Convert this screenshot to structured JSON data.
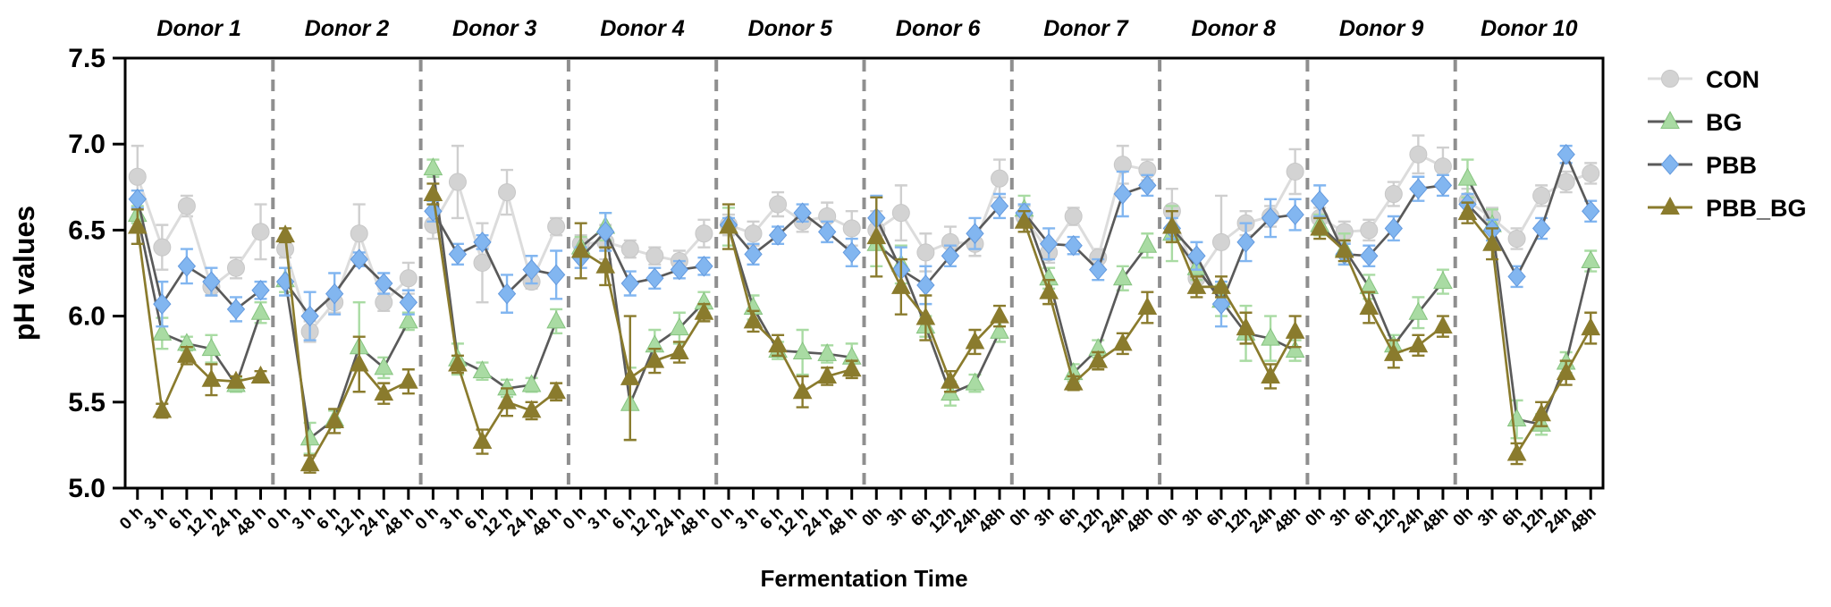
{
  "figure": {
    "background": "#ffffff",
    "y_axis_label": "pH values",
    "x_axis_label": "Fermentation Time"
  },
  "chart_data": {
    "type": "line",
    "title": "",
    "xlabel": "Fermentation Time",
    "ylabel": "pH values",
    "ylim": [
      5.0,
      7.5
    ],
    "y_ticks": [
      "7.5",
      "7.0",
      "6.5",
      "6.0",
      "5.5",
      "5.0"
    ],
    "grid": false,
    "legend_position": "right-outside",
    "series_names": [
      "CON",
      "BG",
      "PBB",
      "PBB_BG"
    ],
    "styles": {
      "CON": {
        "marker": "circle",
        "fill": "#d3d3d3",
        "marker_stroke": "#c7c7c7",
        "line": "#dcdcdc",
        "err": "#cfcfcf"
      },
      "BG": {
        "marker": "triangle",
        "fill": "#a9dba3",
        "marker_stroke": "#85c37f",
        "line": "#5a5a5a",
        "err": "#a9dba3"
      },
      "PBB": {
        "marker": "diamond",
        "fill": "#82b6f0",
        "marker_stroke": "#649ade",
        "line": "#5a5a5a",
        "err": "#82b6f0"
      },
      "PBB_BG": {
        "marker": "triangle",
        "fill": "#8a7b2d",
        "marker_stroke": "#8a7b2d",
        "line": "#8a7b2d",
        "err": "#8a7b2d"
      }
    },
    "separator_color": "#8f8f8f",
    "donors": [
      {
        "name": "Donor 1",
        "tick_labels": [
          "0 h",
          "3 h",
          "6 h",
          "12 h",
          "24 h",
          "48 h"
        ],
        "series": {
          "CON": {
            "values": [
              6.81,
              6.4,
              6.64,
              6.17,
              6.28,
              6.49
            ],
            "err": [
              0.18,
              0.13,
              0.06,
              0.05,
              0.06,
              0.16
            ]
          },
          "BG": {
            "values": [
              6.59,
              5.9,
              5.84,
              5.81,
              5.6,
              6.02
            ],
            "err": [
              0.05,
              0.09,
              0.04,
              0.08,
              0.04,
              0.06
            ]
          },
          "PBB": {
            "values": [
              6.68,
              6.07,
              6.29,
              6.2,
              6.04,
              6.15
            ],
            "err": [
              0.05,
              0.13,
              0.1,
              0.08,
              0.07,
              0.05
            ]
          },
          "PBB_BG": {
            "values": [
              6.52,
              5.45,
              5.77,
              5.63,
              5.62,
              5.65
            ],
            "err": [
              0.1,
              0.04,
              0.05,
              0.09,
              0.03,
              0.03
            ]
          }
        }
      },
      {
        "name": "Donor 2",
        "tick_labels": [
          "0 h",
          "3 h",
          "6 h",
          "12 h",
          "24 h",
          "48 h"
        ],
        "series": {
          "CON": {
            "values": [
              6.39,
              5.91,
              6.08,
              6.48,
              6.08,
              6.22
            ],
            "err": [
              0.05,
              0.06,
              0.06,
              0.17,
              0.05,
              0.09
            ]
          },
          "BG": {
            "values": [
              6.21,
              5.29,
              5.4,
              5.82,
              5.7,
              5.97
            ],
            "err": [
              0.07,
              0.09,
              0.05,
              0.26,
              0.06,
              0.05
            ]
          },
          "PBB": {
            "values": [
              6.2,
              6.0,
              6.13,
              6.33,
              6.19,
              6.08
            ],
            "err": [
              0.08,
              0.14,
              0.12,
              0.04,
              0.06,
              0.07
            ]
          },
          "PBB_BG": {
            "values": [
              6.47,
              5.14,
              5.39,
              5.72,
              5.55,
              5.62
            ],
            "err": [
              0.04,
              0.05,
              0.07,
              0.16,
              0.06,
              0.07
            ]
          }
        }
      },
      {
        "name": "Donor 3",
        "tick_labels": [
          "0 h",
          "3 h",
          "6 h",
          "12 h",
          "24 h",
          "48 h"
        ],
        "series": {
          "CON": {
            "values": [
              6.53,
              6.78,
              6.31,
              6.72,
              6.2,
              6.52
            ],
            "err": [
              0.08,
              0.21,
              0.23,
              0.13,
              0.04,
              0.05
            ]
          },
          "BG": {
            "values": [
              6.86,
              5.75,
              5.68,
              5.58,
              5.6,
              5.97
            ],
            "err": [
              0.05,
              0.09,
              0.05,
              0.05,
              0.04,
              0.07
            ]
          },
          "PBB": {
            "values": [
              6.61,
              6.36,
              6.43,
              6.13,
              6.27,
              6.24
            ],
            "err": [
              0.06,
              0.06,
              0.04,
              0.11,
              0.08,
              0.14
            ]
          },
          "PBB_BG": {
            "values": [
              6.71,
              5.72,
              5.27,
              5.5,
              5.45,
              5.56
            ],
            "err": [
              0.06,
              0.05,
              0.07,
              0.08,
              0.05,
              0.05
            ]
          }
        }
      },
      {
        "name": "Donor 4",
        "tick_labels": [
          "0 h",
          "3 h",
          "6 h",
          "12 h",
          "24 h",
          "48 h"
        ],
        "series": {
          "CON": {
            "values": [
              6.42,
              6.43,
              6.39,
              6.35,
              6.32,
              6.48
            ],
            "err": [
              0.05,
              0.1,
              0.05,
              0.05,
              0.06,
              0.08
            ]
          },
          "BG": {
            "values": [
              6.4,
              6.52,
              5.49,
              5.83,
              5.93,
              6.08
            ],
            "err": [
              0.06,
              0.08,
              0.21,
              0.09,
              0.09,
              0.06
            ]
          },
          "PBB": {
            "values": [
              6.34,
              6.49,
              6.19,
              6.22,
              6.27,
              6.29
            ],
            "err": [
              0.06,
              0.11,
              0.07,
              0.06,
              0.05,
              0.05
            ]
          },
          "PBB_BG": {
            "values": [
              6.38,
              6.29,
              5.64,
              5.74,
              5.79,
              6.02
            ],
            "err": [
              0.16,
              0.11,
              0.36,
              0.07,
              0.06,
              0.05
            ]
          }
        }
      },
      {
        "name": "Donor 5",
        "tick_labels": [
          "0 h",
          "3 h",
          "6 h",
          "12 h",
          "24 h",
          "48 h"
        ],
        "series": {
          "CON": {
            "values": [
              6.53,
              6.48,
              6.65,
              6.55,
              6.58,
              6.51
            ],
            "err": [
              0.06,
              0.07,
              0.07,
              0.06,
              0.08,
              0.1
            ]
          },
          "BG": {
            "values": [
              6.52,
              6.05,
              5.8,
              5.79,
              5.78,
              5.76
            ],
            "err": [
              0.11,
              0.07,
              0.05,
              0.13,
              0.05,
              0.08
            ]
          },
          "PBB": {
            "values": [
              6.53,
              6.36,
              6.47,
              6.6,
              6.49,
              6.37
            ],
            "err": [
              0.04,
              0.06,
              0.05,
              0.05,
              0.06,
              0.08
            ]
          },
          "PBB_BG": {
            "values": [
              6.52,
              5.97,
              5.83,
              5.56,
              5.65,
              5.69
            ],
            "err": [
              0.13,
              0.06,
              0.06,
              0.09,
              0.05,
              0.05
            ]
          }
        }
      },
      {
        "name": "Donor 6",
        "tick_labels": [
          "0h",
          "3h",
          "6h",
          "12h",
          "24h",
          "48h"
        ],
        "series": {
          "CON": {
            "values": [
              6.5,
              6.6,
              6.37,
              6.43,
              6.42,
              6.8
            ],
            "err": [
              0.11,
              0.16,
              0.11,
              0.09,
              0.07,
              0.11
            ]
          },
          "BG": {
            "values": [
              6.42,
              6.3,
              5.94,
              5.55,
              5.61,
              5.91
            ],
            "err": [
              0.13,
              0.11,
              0.06,
              0.07,
              0.05,
              0.06
            ]
          },
          "PBB": {
            "values": [
              6.57,
              6.27,
              6.18,
              6.35,
              6.48,
              6.64
            ],
            "err": [
              0.13,
              0.13,
              0.11,
              0.06,
              0.09,
              0.07
            ]
          },
          "PBB_BG": {
            "values": [
              6.46,
              6.17,
              5.99,
              5.62,
              5.85,
              6.0
            ],
            "err": [
              0.23,
              0.16,
              0.13,
              0.06,
              0.07,
              0.06
            ]
          }
        }
      },
      {
        "name": "Donor 7",
        "tick_labels": [
          "0h",
          "3h",
          "6h",
          "12h",
          "24h",
          "48h"
        ],
        "series": {
          "CON": {
            "values": [
              6.58,
              6.37,
              6.58,
              6.34,
              6.88,
              6.85
            ],
            "err": [
              0.06,
              0.06,
              0.05,
              0.05,
              0.11,
              0.06
            ]
          },
          "BG": {
            "values": [
              6.62,
              6.22,
              5.67,
              5.81,
              6.22,
              6.41
            ],
            "err": [
              0.08,
              0.06,
              0.05,
              0.05,
              0.07,
              0.07
            ]
          },
          "PBB": {
            "values": [
              6.6,
              6.42,
              6.41,
              6.27,
              6.71,
              6.76
            ],
            "err": [
              0.05,
              0.09,
              0.05,
              0.06,
              0.13,
              0.06
            ]
          },
          "PBB_BG": {
            "values": [
              6.55,
              6.14,
              5.61,
              5.74,
              5.84,
              6.05
            ],
            "err": [
              0.06,
              0.07,
              0.04,
              0.05,
              0.06,
              0.09
            ]
          }
        }
      },
      {
        "name": "Donor 8",
        "tick_labels": [
          "0h",
          "3h",
          "6h",
          "12h",
          "24h",
          "48h"
        ],
        "series": {
          "CON": {
            "values": [
              6.61,
              6.22,
              6.43,
              6.54,
              6.58,
              6.84
            ],
            "err": [
              0.13,
              0.06,
              0.27,
              0.07,
              0.06,
              0.13
            ]
          },
          "BG": {
            "values": [
              6.48,
              6.28,
              6.09,
              5.9,
              5.87,
              5.8
            ],
            "err": [
              0.16,
              0.07,
              0.09,
              0.16,
              0.13,
              0.06
            ]
          },
          "PBB": {
            "values": [
              6.51,
              6.35,
              6.07,
              6.43,
              6.57,
              6.59
            ],
            "err": [
              0.06,
              0.08,
              0.13,
              0.11,
              0.11,
              0.09
            ]
          },
          "PBB_BG": {
            "values": [
              6.52,
              6.17,
              6.17,
              5.93,
              5.65,
              5.91
            ],
            "err": [
              0.09,
              0.06,
              0.06,
              0.09,
              0.07,
              0.09
            ]
          }
        }
      },
      {
        "name": "Donor 9",
        "tick_labels": [
          "0h",
          "3h",
          "6h",
          "12h",
          "24h",
          "48h"
        ],
        "series": {
          "CON": {
            "values": [
              6.57,
              6.49,
              6.5,
              6.71,
              6.94,
              6.87
            ],
            "err": [
              0.06,
              0.06,
              0.06,
              0.07,
              0.11,
              0.11
            ]
          },
          "BG": {
            "values": [
              6.53,
              6.39,
              6.17,
              5.83,
              6.02,
              6.2
            ],
            "err": [
              0.06,
              0.09,
              0.07,
              0.06,
              0.09,
              0.07
            ]
          },
          "PBB": {
            "values": [
              6.67,
              6.36,
              6.35,
              6.51,
              6.74,
              6.76
            ],
            "err": [
              0.09,
              0.06,
              0.06,
              0.07,
              0.07,
              0.06
            ]
          },
          "PBB_BG": {
            "values": [
              6.51,
              6.38,
              6.05,
              5.78,
              5.83,
              5.94
            ],
            "err": [
              0.06,
              0.06,
              0.09,
              0.08,
              0.06,
              0.06
            ]
          }
        }
      },
      {
        "name": "Donor 10",
        "tick_labels": [
          "0h",
          "3h",
          "6h",
          "12h",
          "24h",
          "48h"
        ],
        "series": {
          "CON": {
            "values": [
              6.67,
              6.57,
              6.45,
              6.7,
              6.78,
              6.83
            ],
            "err": [
              0.07,
              0.06,
              0.06,
              0.06,
              0.06,
              0.06
            ]
          },
          "BG": {
            "values": [
              6.8,
              6.53,
              5.4,
              5.37,
              5.73,
              6.32
            ],
            "err": [
              0.11,
              0.09,
              0.11,
              0.06,
              0.06,
              0.06
            ]
          },
          "PBB": {
            "values": [
              6.65,
              6.5,
              6.23,
              6.51,
              6.94,
              6.61
            ],
            "err": [
              0.06,
              0.06,
              0.06,
              0.06,
              0.05,
              0.06
            ]
          },
          "PBB_BG": {
            "values": [
              6.6,
              6.42,
              5.2,
              5.43,
              5.67,
              5.93
            ],
            "err": [
              0.06,
              0.09,
              0.06,
              0.07,
              0.07,
              0.09
            ]
          }
        }
      }
    ]
  }
}
